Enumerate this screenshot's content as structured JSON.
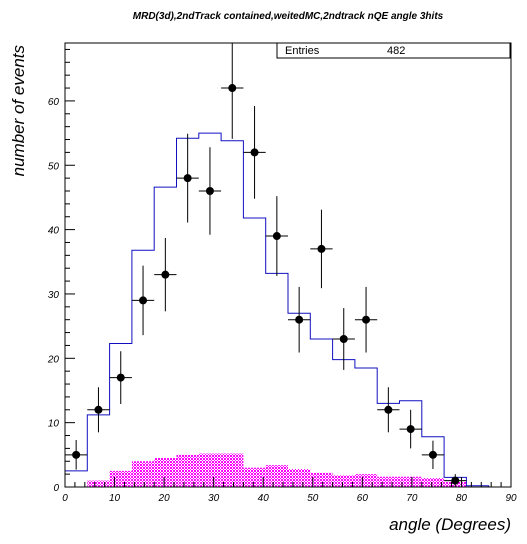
{
  "title": "MRD(3d),2ndTrack contained,weitedMC,2ndtrack nQE angle 3hits",
  "stats": {
    "label": "Entries",
    "value": "482"
  },
  "chart_data": {
    "type": "histogram",
    "xlabel": "angle (Degrees)",
    "ylabel": "number of events",
    "xlim": [
      0,
      90
    ],
    "ylim": [
      0,
      69
    ],
    "x_ticks": [
      0,
      10,
      20,
      30,
      40,
      50,
      60,
      70,
      80,
      90
    ],
    "y_ticks": [
      0,
      10,
      20,
      30,
      40,
      50,
      60
    ],
    "bin_edges": [
      0,
      4.5,
      9,
      13.5,
      18,
      22.5,
      27,
      31.5,
      36,
      40.5,
      45,
      49.5,
      54,
      58.5,
      63,
      67.5,
      72,
      76.5,
      81,
      85.5,
      90
    ],
    "series": [
      {
        "kind": "mc_total",
        "style": "step",
        "color": "#1010c0",
        "values": [
          2.5,
          11.2,
          22.3,
          36.8,
          46.6,
          54.2,
          55.0,
          53.8,
          41.8,
          33.2,
          27.0,
          23.0,
          19.8,
          18.5,
          13.0,
          13.4,
          7.8,
          1.5,
          0.2,
          0.0
        ]
      },
      {
        "kind": "mc_background",
        "style": "filled",
        "color": "#ff00ff",
        "values": [
          0.0,
          1.0,
          2.5,
          4.0,
          4.5,
          5.0,
          5.2,
          5.2,
          3.0,
          3.4,
          2.8,
          2.2,
          1.8,
          2.0,
          1.6,
          1.6,
          1.4,
          0.8,
          0.0,
          0.0
        ]
      },
      {
        "kind": "data",
        "style": "points",
        "color": "#000000",
        "points": [
          {
            "x": 2.25,
            "y": 5,
            "err": 2.3
          },
          {
            "x": 6.75,
            "y": 12,
            "err": 3.5
          },
          {
            "x": 11.25,
            "y": 17,
            "err": 4.1
          },
          {
            "x": 15.75,
            "y": 29,
            "err": 5.4
          },
          {
            "x": 20.25,
            "y": 33,
            "err": 5.7
          },
          {
            "x": 24.75,
            "y": 48,
            "err": 6.9
          },
          {
            "x": 29.25,
            "y": 46,
            "err": 6.8
          },
          {
            "x": 33.75,
            "y": 62,
            "err": 7.9
          },
          {
            "x": 38.25,
            "y": 52,
            "err": 7.2
          },
          {
            "x": 42.75,
            "y": 39,
            "err": 6.2
          },
          {
            "x": 47.25,
            "y": 26,
            "err": 5.1
          },
          {
            "x": 51.75,
            "y": 37,
            "err": 6.1
          },
          {
            "x": 56.25,
            "y": 23,
            "err": 4.8
          },
          {
            "x": 60.75,
            "y": 26,
            "err": 5.1
          },
          {
            "x": 65.25,
            "y": 12,
            "err": 3.5
          },
          {
            "x": 69.75,
            "y": 9,
            "err": 3.0
          },
          {
            "x": 74.25,
            "y": 5,
            "err": 2.2
          },
          {
            "x": 78.75,
            "y": 1,
            "err": 1.0
          }
        ]
      }
    ]
  }
}
